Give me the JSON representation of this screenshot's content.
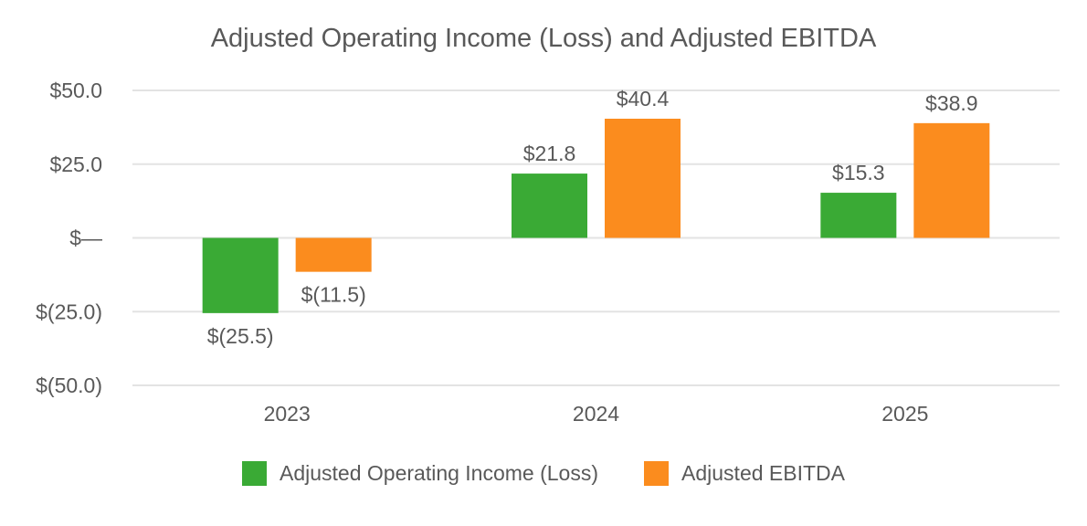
{
  "chart_data": {
    "type": "bar",
    "title": "Adjusted Operating Income (Loss) and Adjusted EBITDA",
    "categories": [
      "2023",
      "2024",
      "2025"
    ],
    "series": [
      {
        "name": "Adjusted Operating Income (Loss)",
        "color": "#3aaa35",
        "values": [
          -25.5,
          21.8,
          15.3
        ],
        "labels": [
          "$(25.5)",
          "$21.8",
          "$15.3"
        ]
      },
      {
        "name": "Adjusted EBITDA",
        "color": "#fb8c1e",
        "values": [
          -11.5,
          40.4,
          38.9
        ],
        "labels": [
          "$(11.5)",
          "$40.4",
          "$38.9"
        ]
      }
    ],
    "ylim": [
      -50,
      50
    ],
    "yticks": [
      50,
      25,
      0,
      -25,
      -50
    ],
    "ytick_labels": [
      "$50.0",
      "$25.0",
      "$—",
      "$(25.0)",
      "$(50.0)"
    ],
    "grid": true,
    "legend_position": "bottom"
  }
}
